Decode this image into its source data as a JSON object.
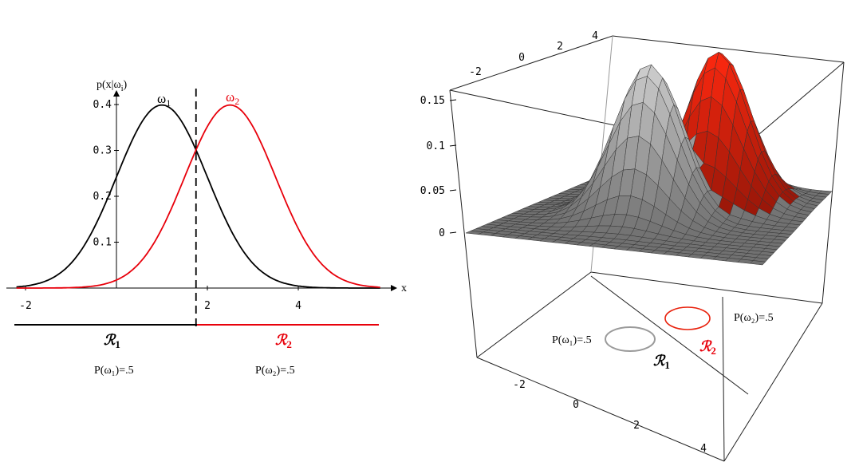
{
  "chart_data": [
    {
      "type": "line",
      "ylabel": "p(x|ω",
      "ylabel_sub": "i",
      "ylabel_close": ")",
      "xlabel": "x",
      "xlim": [
        -2.2,
        5.8
      ],
      "ylim": [
        0,
        0.42
      ],
      "xticks": [
        "-2",
        "2",
        "4"
      ],
      "yticks": [
        "0.1",
        "0.2",
        "0.3",
        "0.4"
      ],
      "ytick_values": [
        0.1,
        0.2,
        0.3,
        0.4
      ],
      "xtick_values": [
        -2,
        2,
        4
      ],
      "series": [
        {
          "name": "ω",
          "sub": "1",
          "color": "#000000",
          "mean": 1.0,
          "sd": 1.0
        },
        {
          "name": "ω",
          "sub": "2",
          "color": "#e8000b",
          "mean": 2.5,
          "sd": 1.0
        }
      ],
      "decision_boundary_x": 1.75,
      "regions": [
        {
          "label": "ℛ",
          "sub": "1",
          "color": "#000000",
          "prior": "P(ω₁)=.5"
        },
        {
          "label": "ℛ",
          "sub": "2",
          "color": "#e8000b",
          "prior": "P(ω₂)=.5"
        }
      ]
    },
    {
      "type": "surface",
      "z_ticks": [
        "0.15",
        "0.1",
        "0.05",
        "0"
      ],
      "z_tick_values": [
        0.15,
        0.1,
        0.05,
        0
      ],
      "back_axis_ticks": [
        "-2",
        "0",
        "2",
        "4"
      ],
      "front_axis_ticks": [
        "-2",
        "0",
        "2",
        "4"
      ],
      "surfaces": [
        {
          "color": "#bdbdbd",
          "peak": 0.159
        },
        {
          "color": "#e8200b",
          "peak": 0.159
        }
      ],
      "regions": [
        {
          "label": "ℛ",
          "sub": "1",
          "color": "#000000",
          "prior": "P(ω₁)=.5"
        },
        {
          "label": "ℛ",
          "sub": "2",
          "color": "#e8000b",
          "prior": "P(ω₂)=.5"
        }
      ]
    }
  ]
}
